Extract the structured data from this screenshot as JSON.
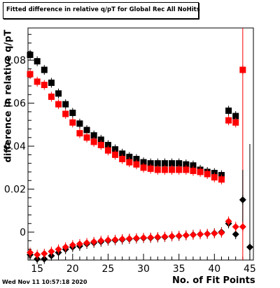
{
  "header": {
    "title": "Fitted difference in relative q/pT for Global Rec All NoHits",
    "timestamp": "Wed Nov 11 10:57:18 2020"
  },
  "chart_data": {
    "type": "scatter",
    "title": "Fitted difference in relative q/pT for Global Rec All NoHits",
    "xlabel": "No. of Fit Points",
    "ylabel": "difference in relative q/pT",
    "xlim": [
      13.7,
      45.5
    ],
    "ylim": [
      -0.013,
      0.095
    ],
    "xticks": [
      15,
      20,
      25,
      30,
      35,
      40,
      45
    ],
    "yticks": [
      0,
      0.02,
      0.04,
      0.06,
      0.08
    ],
    "ytick_labels": [
      "0",
      "0.02",
      "0.04",
      "0.06",
      "0.08"
    ],
    "grid": false,
    "series": [
      {
        "marker": "square",
        "color": "#000000",
        "x": [
          14,
          15,
          16,
          17,
          18,
          19,
          20,
          21,
          22,
          23,
          24,
          25,
          26,
          27,
          28,
          29,
          30,
          31,
          32,
          33,
          34,
          35,
          36,
          37,
          38,
          39,
          40,
          41,
          42,
          43
        ],
        "y": [
          0.0825,
          0.0795,
          0.0755,
          0.0695,
          0.0645,
          0.0595,
          0.0555,
          0.0505,
          0.0475,
          0.045,
          0.043,
          0.0405,
          0.0385,
          0.0365,
          0.035,
          0.034,
          0.0325,
          0.032,
          0.032,
          0.032,
          0.032,
          0.032,
          0.0315,
          0.031,
          0.029,
          0.028,
          0.0275,
          0.0265,
          0.0565,
          0.054
        ]
      },
      {
        "marker": "square",
        "color": "#ff0000",
        "x": [
          14,
          15,
          16,
          17,
          18,
          19,
          20,
          21,
          22,
          23,
          24,
          25,
          26,
          27,
          28,
          29,
          30,
          31,
          32,
          33,
          34,
          35,
          36,
          37,
          38,
          39,
          40,
          41,
          42,
          43,
          44
        ],
        "y": [
          0.0735,
          0.07,
          0.0685,
          0.063,
          0.0595,
          0.055,
          0.051,
          0.046,
          0.044,
          0.042,
          0.0405,
          0.038,
          0.036,
          0.034,
          0.0325,
          0.0315,
          0.03,
          0.0295,
          0.029,
          0.029,
          0.029,
          0.029,
          0.029,
          0.0285,
          0.028,
          0.027,
          0.0255,
          0.0245,
          0.052,
          0.051,
          0.0755
        ]
      },
      {
        "marker": "diamond",
        "color": "#000000",
        "x": [
          14,
          15,
          16,
          17,
          18,
          19,
          20,
          21,
          22,
          23,
          24,
          25,
          26,
          27,
          28,
          29,
          30,
          31,
          32,
          33,
          34,
          35,
          36,
          37,
          38,
          39,
          40,
          41,
          42,
          43,
          44,
          45
        ],
        "y": [
          -0.0105,
          -0.0125,
          -0.0125,
          -0.011,
          -0.0095,
          -0.008,
          -0.007,
          -0.0065,
          -0.0055,
          -0.005,
          -0.0045,
          -0.004,
          -0.0038,
          -0.0035,
          -0.0032,
          -0.003,
          -0.0028,
          -0.0027,
          -0.0025,
          -0.0023,
          -0.002,
          -0.0018,
          -0.0015,
          -0.0012,
          -0.001,
          -0.0008,
          -0.0005,
          0.0,
          0.004,
          -0.001,
          0.015,
          -0.007
        ]
      },
      {
        "marker": "diamond",
        "color": "#ff0000",
        "x": [
          14,
          15,
          16,
          17,
          18,
          19,
          20,
          21,
          22,
          23,
          24,
          25,
          26,
          27,
          28,
          29,
          30,
          31,
          32,
          33,
          34,
          35,
          36,
          37,
          38,
          39,
          40,
          41,
          42,
          43,
          44
        ],
        "y": [
          -0.0095,
          -0.0105,
          -0.01,
          -0.009,
          -0.008,
          -0.007,
          -0.006,
          -0.0055,
          -0.005,
          -0.0045,
          -0.004,
          -0.0037,
          -0.0035,
          -0.0032,
          -0.003,
          -0.0028,
          -0.0026,
          -0.0025,
          -0.0023,
          -0.0021,
          -0.0019,
          -0.0017,
          -0.0015,
          -0.0013,
          -0.001,
          -0.0008,
          -0.0006,
          -0.0003,
          0.005,
          0.0025,
          0.0025
        ]
      }
    ],
    "error_bars": [
      {
        "x": 44,
        "y_low": -0.013,
        "y_high": 0.095,
        "color": "#ff0000"
      },
      {
        "x": 45,
        "y_low": -0.013,
        "y_high": 0.041,
        "color": "#000000"
      },
      {
        "x": 44,
        "y_low": 0.002,
        "y_high": 0.029,
        "color": "#000000"
      }
    ]
  }
}
